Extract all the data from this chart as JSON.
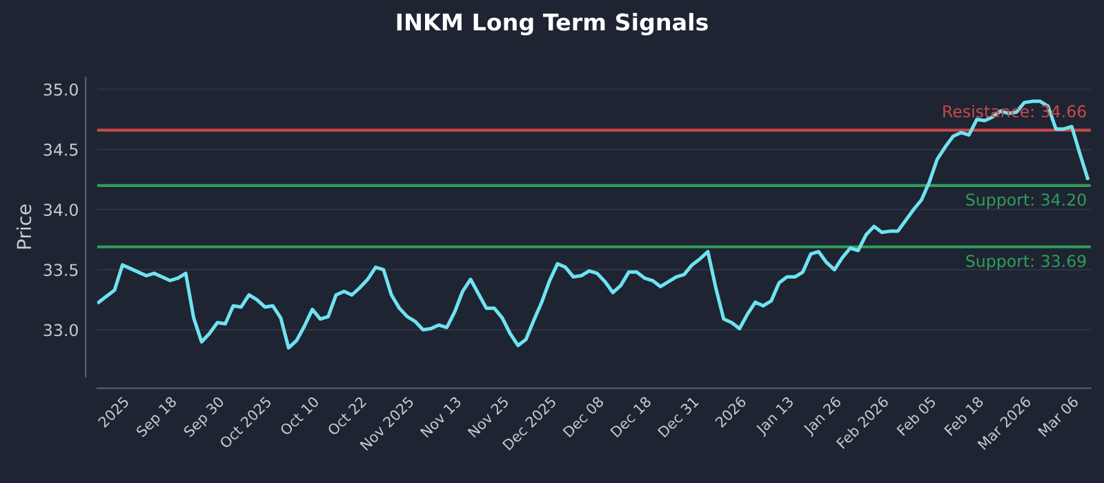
{
  "chart_data": {
    "type": "line",
    "title": "INKM Long Term Signals",
    "ylabel": "Price",
    "categories": [
      null,
      null,
      null,
      "2025",
      null,
      null,
      null,
      null,
      null,
      "Sep 18",
      null,
      null,
      null,
      null,
      null,
      "Sep 30",
      null,
      null,
      null,
      null,
      null,
      "Oct 2025",
      null,
      null,
      null,
      null,
      null,
      "Oct 10",
      null,
      null,
      null,
      null,
      null,
      "Oct 22",
      null,
      null,
      null,
      null,
      null,
      "Nov 2025",
      null,
      null,
      null,
      null,
      null,
      "Nov 13",
      null,
      null,
      null,
      null,
      null,
      "Nov 25",
      null,
      null,
      null,
      null,
      null,
      "Dec 2025",
      null,
      null,
      null,
      null,
      null,
      "Dec 08",
      null,
      null,
      null,
      null,
      null,
      "Dec 18",
      null,
      null,
      null,
      null,
      null,
      "Dec 31",
      null,
      null,
      null,
      null,
      null,
      "2026",
      null,
      null,
      null,
      null,
      null,
      "Jan 13",
      null,
      null,
      null,
      null,
      null,
      "Jan 26",
      null,
      null,
      null,
      null,
      null,
      "Feb 2026",
      null,
      null,
      null,
      null,
      null,
      "Feb 05",
      null,
      null,
      null,
      null,
      null,
      "Feb 18",
      null,
      null,
      null,
      null,
      null,
      "Mar 2026",
      null,
      null,
      null,
      null,
      null,
      "Mar 06",
      null,
      null
    ],
    "series": [
      {
        "color": "#6fe3f0",
        "values": [
          33.23,
          33.28,
          33.33,
          33.54,
          33.51,
          33.48,
          33.45,
          33.47,
          33.44,
          33.41,
          33.43,
          33.47,
          33.1,
          32.9,
          32.97,
          33.06,
          33.05,
          33.2,
          33.19,
          33.29,
          33.25,
          33.19,
          33.2,
          33.1,
          32.85,
          32.91,
          33.03,
          33.17,
          33.09,
          33.11,
          33.29,
          33.32,
          33.29,
          33.35,
          33.42,
          33.52,
          33.5,
          33.29,
          33.18,
          33.11,
          33.07,
          33.0,
          33.01,
          33.04,
          33.02,
          33.15,
          33.32,
          33.42,
          33.3,
          33.18,
          33.18,
          33.1,
          32.97,
          32.87,
          32.92,
          33.08,
          33.23,
          33.41,
          33.55,
          33.52,
          33.44,
          33.45,
          33.49,
          33.47,
          33.4,
          33.31,
          33.37,
          33.48,
          33.48,
          33.43,
          33.41,
          33.36,
          33.4,
          33.44,
          33.46,
          33.54,
          33.59,
          33.65,
          33.35,
          33.09,
          33.06,
          33.01,
          33.13,
          33.23,
          33.2,
          33.24,
          33.39,
          33.44,
          33.44,
          33.48,
          33.63,
          33.65,
          33.56,
          33.5,
          33.6,
          33.68,
          33.66,
          33.79,
          33.86,
          33.81,
          33.82,
          33.82,
          33.91,
          34.0,
          34.08,
          34.23,
          34.42,
          34.52,
          34.61,
          34.64,
          34.62,
          34.75,
          34.74,
          34.77,
          34.82,
          34.8,
          34.81,
          34.89,
          34.9,
          34.9,
          34.86,
          34.67,
          34.67,
          34.69,
          34.47,
          34.26
        ]
      }
    ],
    "ylim": [
      32.61,
      35.1
    ],
    "yticks": [
      {
        "value": 33,
        "label": "33.0"
      },
      {
        "value": 33.5,
        "label": "33.5"
      },
      {
        "value": 34,
        "label": "34.0"
      },
      {
        "value": 34.5,
        "label": "34.5"
      },
      {
        "value": 35,
        "label": "35.0"
      }
    ],
    "ref_lines": [
      {
        "axis": "y",
        "value": 34.66,
        "label": "Resistance: 34.66",
        "color": "#c9484a"
      },
      {
        "axis": "y",
        "value": 34.2,
        "label": "Support: 34.20",
        "color": "#2f9e5a"
      },
      {
        "axis": "y",
        "value": 33.69,
        "label": "Support: 33.69",
        "color": "#2f9e5a"
      }
    ],
    "grid": "y",
    "legend": false,
    "marker": "none",
    "line_style": "solid"
  }
}
